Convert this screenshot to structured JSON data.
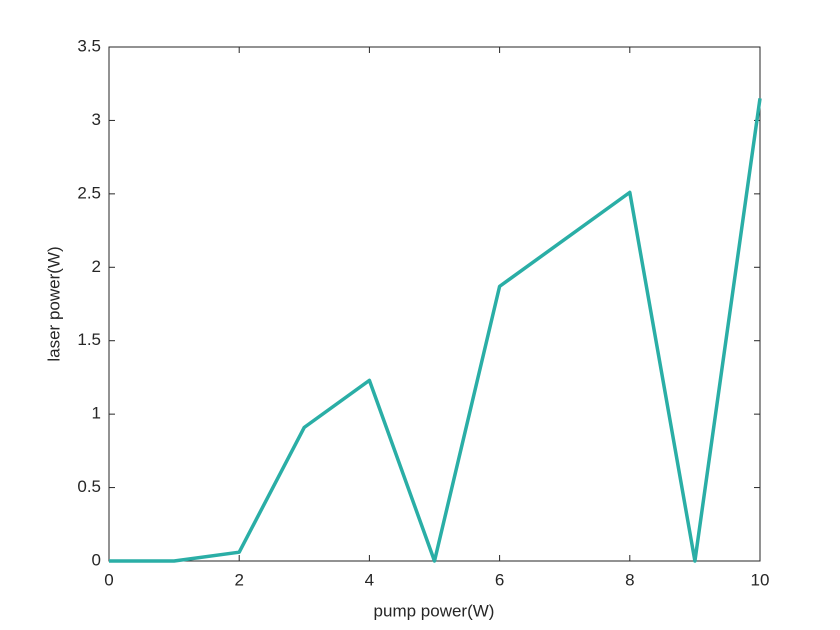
{
  "chart_data": {
    "type": "line",
    "xlabel": "pump power(W)",
    "ylabel": "laser power(W)",
    "x": [
      0,
      1,
      2,
      3,
      4,
      5,
      6,
      8,
      9,
      10
    ],
    "series": [
      {
        "color": "#2aaea6",
        "values": [
          0,
          0,
          0.06,
          0.91,
          1.23,
          0,
          1.87,
          2.51,
          0,
          3.15
        ]
      }
    ],
    "xlim": [
      0,
      10
    ],
    "xticks": [
      0,
      2,
      4,
      6,
      8,
      10
    ],
    "ylim": [
      0,
      3.5
    ],
    "yticks": [
      0,
      0.5,
      1,
      1.5,
      2,
      2.5,
      3,
      3.5
    ],
    "grid": false
  }
}
